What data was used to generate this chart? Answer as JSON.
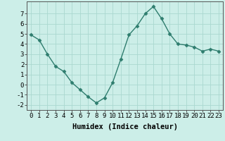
{
  "x": [
    0,
    1,
    2,
    3,
    4,
    5,
    6,
    7,
    8,
    9,
    10,
    11,
    12,
    13,
    14,
    15,
    16,
    17,
    18,
    19,
    20,
    21,
    22,
    23
  ],
  "y": [
    4.9,
    4.4,
    3.0,
    1.8,
    1.3,
    0.2,
    -0.5,
    -1.2,
    -1.8,
    -1.3,
    0.2,
    2.5,
    4.9,
    5.8,
    7.0,
    7.7,
    6.5,
    5.0,
    4.0,
    3.9,
    3.7,
    3.3,
    3.5,
    3.3
  ],
  "line_color": "#2e7d6e",
  "marker": "D",
  "marker_size": 2.5,
  "bg_color": "#cceee8",
  "grid_color": "#aad8d0",
  "xlabel": "Humidex (Indice chaleur)",
  "ylim": [
    -2.5,
    8.2
  ],
  "xlim": [
    -0.5,
    23.5
  ],
  "yticks": [
    -2,
    -1,
    0,
    1,
    2,
    3,
    4,
    5,
    6,
    7
  ],
  "xticks": [
    0,
    1,
    2,
    3,
    4,
    5,
    6,
    7,
    8,
    9,
    10,
    11,
    12,
    13,
    14,
    15,
    16,
    17,
    18,
    19,
    20,
    21,
    22,
    23
  ],
  "tick_fontsize": 6.5,
  "xlabel_fontsize": 7.5,
  "xlabel_fontweight": "bold",
  "linewidth": 1.0
}
